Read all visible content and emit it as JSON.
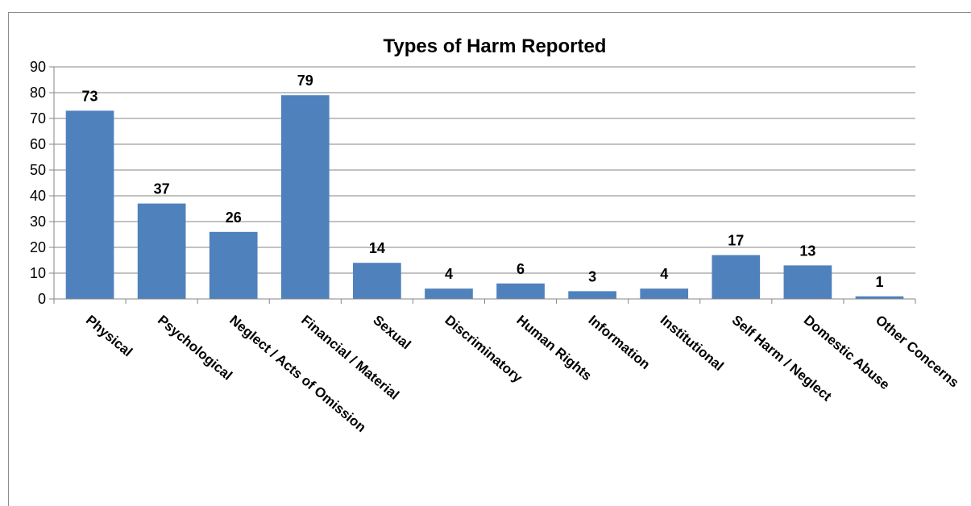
{
  "chart_data": {
    "type": "bar",
    "title": "Types of Harm Reported",
    "xlabel": "",
    "ylabel": "",
    "ylim": [
      0,
      90
    ],
    "yticks": [
      0,
      10,
      20,
      30,
      40,
      50,
      60,
      70,
      80,
      90
    ],
    "grid": true,
    "legend": "none",
    "bar_color": "#4f81bd",
    "categories": [
      "Physical",
      "Psychological",
      "Neglect / Acts of Omission",
      "Financial / Material",
      "Sexual",
      "Discriminatory",
      "Human Rights",
      "Information",
      "Institutional",
      "Self Harm / Neglect",
      "Domestic Abuse",
      "Other Concerns"
    ],
    "values": [
      73,
      37,
      26,
      79,
      14,
      4,
      6,
      3,
      4,
      17,
      13,
      1
    ]
  }
}
